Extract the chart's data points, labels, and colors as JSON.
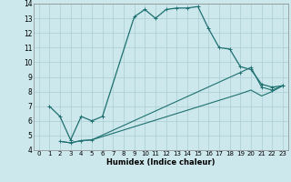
{
  "xlabel": "Humidex (Indice chaleur)",
  "xlim": [
    -0.5,
    23.5
  ],
  "ylim": [
    4,
    14
  ],
  "xticks": [
    0,
    1,
    2,
    3,
    4,
    5,
    6,
    7,
    8,
    9,
    10,
    11,
    12,
    13,
    14,
    15,
    16,
    17,
    18,
    19,
    20,
    21,
    22,
    23
  ],
  "yticks": [
    4,
    5,
    6,
    7,
    8,
    9,
    10,
    11,
    12,
    13,
    14
  ],
  "bg_color": "#cce8ec",
  "grid_color": "#aacfd4",
  "line_color": "#1e7070",
  "line1_x": [
    1,
    2,
    3,
    4,
    5,
    6,
    9,
    10,
    11,
    12,
    13,
    14,
    15,
    16,
    17,
    18,
    19,
    20,
    21,
    22,
    23
  ],
  "line1_y": [
    7.0,
    6.3,
    4.7,
    6.3,
    6.0,
    6.3,
    13.1,
    13.6,
    13.0,
    13.6,
    13.7,
    13.7,
    13.8,
    12.3,
    11.0,
    10.9,
    9.7,
    9.5,
    8.5,
    8.3,
    8.4
  ],
  "line2_x": [
    2,
    3,
    4,
    5,
    19,
    20,
    21,
    22,
    23
  ],
  "line2_y": [
    4.6,
    4.5,
    4.65,
    4.7,
    9.3,
    9.65,
    8.3,
    8.1,
    8.4
  ],
  "line3_x": [
    2,
    3,
    4,
    5,
    19,
    20,
    21,
    22,
    23
  ],
  "line3_y": [
    4.6,
    4.5,
    4.65,
    4.7,
    7.85,
    8.1,
    7.7,
    8.0,
    8.4
  ]
}
